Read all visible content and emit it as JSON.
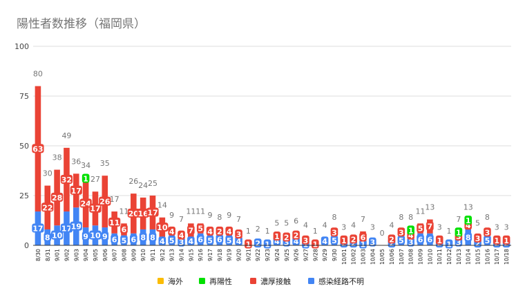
{
  "title": "陽性者数推移（福岡県）",
  "colors": {
    "kaigai": "#fbbc04",
    "sai": "#00e000",
    "noukou": "#ea4335",
    "fumei": "#4285f4",
    "grid": "#dddddd",
    "axis": "#333333"
  },
  "chart_data": {
    "type": "bar",
    "stacked": true,
    "title": "陽性者数推移（福岡県）",
    "ylim": [
      0,
      100
    ],
    "yticks": [
      0,
      25,
      50,
      75,
      100
    ],
    "grid": true,
    "legend_position": "bottom",
    "categories": [
      "8/30",
      "8/31",
      "9/01",
      "9/02",
      "9/03",
      "9/04",
      "9/05",
      "9/06",
      "9/07",
      "9/08",
      "9/09",
      "9/10",
      "9/11",
      "9/12",
      "9/13",
      "9/14",
      "9/15",
      "9/16",
      "9/17",
      "9/18",
      "9/19",
      "9/20",
      "9/21",
      "9/22",
      "9/23",
      "9/24",
      "9/25",
      "9/26",
      "9/27",
      "9/28",
      "9/29",
      "9/30",
      "10/01",
      "10/02",
      "10/03",
      "10/04",
      "10/05",
      "10/06",
      "10/07",
      "10/08",
      "10/09",
      "10/10",
      "10/11",
      "10/12",
      "10/13",
      "10/14",
      "10/15",
      "10/16",
      "10/17",
      "10/18"
    ],
    "totals": [
      80,
      30,
      38,
      49,
      36,
      34,
      27,
      35,
      17,
      11,
      26,
      24,
      25,
      14,
      9,
      7,
      11,
      11,
      9,
      8,
      9,
      7,
      1,
      2,
      1,
      5,
      5,
      6,
      4,
      1,
      4,
      8,
      3,
      4,
      7,
      3,
      0,
      4,
      8,
      8,
      11,
      13,
      3,
      1,
      7,
      13,
      5,
      8,
      3,
      3
    ],
    "series": [
      {
        "name": "海外",
        "key": "kaigai",
        "values": [
          0,
          0,
          0,
          0,
          0,
          0,
          0,
          0,
          0,
          0,
          0,
          0,
          0,
          0,
          0,
          0,
          0,
          0,
          0,
          0,
          0,
          0,
          0,
          0,
          0,
          0,
          0,
          0,
          0,
          0,
          0,
          0,
          0,
          0,
          0,
          0,
          0,
          0,
          0,
          0,
          0,
          0,
          0,
          0,
          0,
          0,
          0,
          0,
          0,
          0
        ]
      },
      {
        "name": "再陽性",
        "key": "sai",
        "values": [
          0,
          0,
          0,
          0,
          0,
          1,
          0,
          0,
          0,
          0,
          0,
          0,
          0,
          0,
          0,
          0,
          0,
          0,
          0,
          0,
          0,
          0,
          0,
          0,
          0,
          0,
          0,
          0,
          0,
          0,
          0,
          0,
          0,
          0,
          0,
          0,
          0,
          0,
          0,
          1,
          0,
          0,
          0,
          0,
          1,
          1,
          0,
          0,
          0,
          0
        ]
      },
      {
        "name": "濃厚接触",
        "key": "noukou",
        "values": [
          63,
          22,
          28,
          32,
          17,
          24,
          17,
          26,
          11,
          6,
          20,
          16,
          17,
          10,
          4,
          4,
          7,
          5,
          4,
          2,
          4,
          3,
          1,
          0,
          0,
          1,
          2,
          2,
          3,
          1,
          0,
          3,
          1,
          2,
          6,
          0,
          0,
          2,
          3,
          4,
          5,
          7,
          1,
          0,
          3,
          4,
          3,
          3,
          1,
          1
        ]
      },
      {
        "name": "感染経路不明",
        "key": "fumei",
        "values": [
          17,
          8,
          10,
          17,
          19,
          9,
          10,
          9,
          6,
          5,
          6,
          8,
          8,
          4,
          5,
          3,
          4,
          6,
          5,
          6,
          5,
          4,
          0,
          2,
          1,
          4,
          3,
          4,
          1,
          0,
          4,
          5,
          2,
          2,
          1,
          3,
          0,
          2,
          5,
          3,
          6,
          6,
          2,
          1,
          3,
          8,
          2,
          5,
          2,
          2
        ]
      }
    ],
    "label_series": [
      "濃厚接触",
      "感染経路不明"
    ]
  }
}
